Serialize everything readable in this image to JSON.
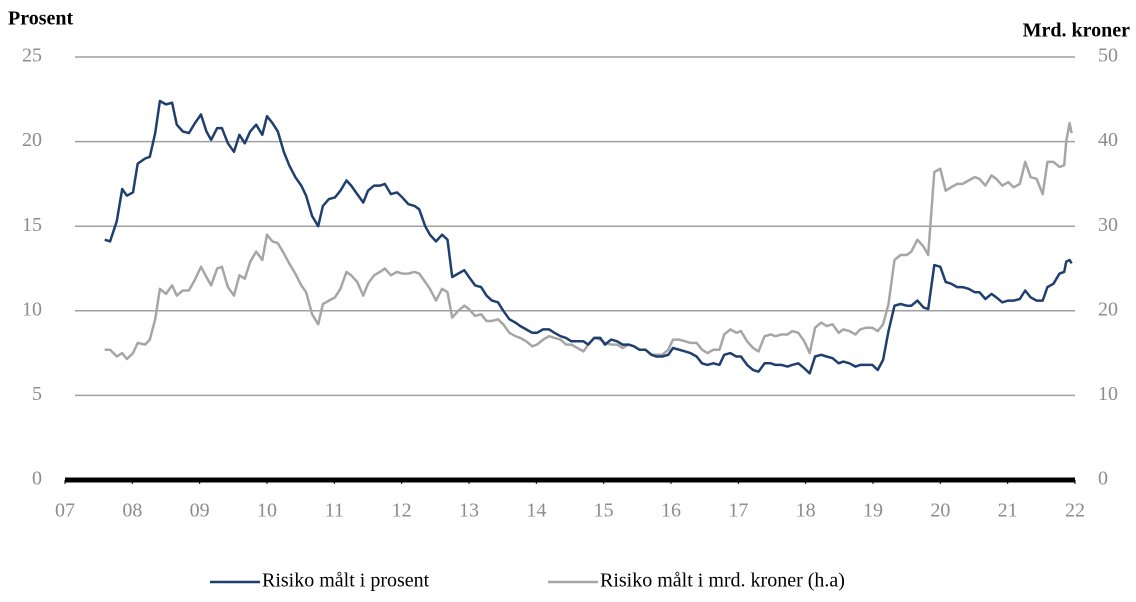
{
  "chart_data": {
    "type": "line",
    "y_label": "Prosent",
    "y2_label": "Mrd. kroner",
    "x": [
      2007.59,
      2007.67,
      2007.77,
      2007.85,
      2007.92,
      2008.01,
      2008.08,
      2008.19,
      2008.26,
      2008.34,
      2008.41,
      2008.5,
      2008.59,
      2008.66,
      2008.75,
      2008.84,
      2008.93,
      2009.02,
      2009.1,
      2009.17,
      2009.26,
      2009.33,
      2009.42,
      2009.51,
      2009.59,
      2009.67,
      2009.75,
      2009.84,
      2009.93,
      2010,
      2010.08,
      2010.16,
      2010.25,
      2010.33,
      2010.42,
      2010.51,
      2010.58,
      2010.67,
      2010.76,
      2010.83,
      2010.92,
      2011.01,
      2011.09,
      2011.18,
      2011.25,
      2011.34,
      2011.43,
      2011.5,
      2011.59,
      2011.68,
      2011.75,
      2011.84,
      2011.93,
      2012.01,
      2012.1,
      2012.19,
      2012.26,
      2012.35,
      2012.42,
      2012.51,
      2012.6,
      2012.68,
      2012.75,
      2012.84,
      2012.93,
      2013,
      2013.09,
      2013.18,
      2013.26,
      2013.34,
      2013.43,
      2013.51,
      2013.6,
      2013.69,
      2013.76,
      2013.85,
      2013.94,
      2014.01,
      2014.1,
      2014.19,
      2014.27,
      2014.36,
      2014.44,
      2014.52,
      2014.61,
      2014.7,
      2014.77,
      2014.86,
      2014.95,
      2015.02,
      2015.11,
      2015.2,
      2015.28,
      2015.37,
      2015.45,
      2015.53,
      2015.62,
      2015.71,
      2015.78,
      2015.87,
      2015.96,
      2016.03,
      2016.12,
      2016.21,
      2016.29,
      2016.38,
      2016.46,
      2016.54,
      2016.63,
      2016.72,
      2016.79,
      2016.88,
      2016.97,
      2017.04,
      2017.13,
      2017.22,
      2017.3,
      2017.39,
      2017.48,
      2017.55,
      2017.64,
      2017.73,
      2017.8,
      2017.89,
      2017.98,
      2018.06,
      2018.14,
      2018.23,
      2018.31,
      2018.4,
      2018.49,
      2018.56,
      2018.65,
      2018.74,
      2018.81,
      2018.9,
      2018.99,
      2019.07,
      2019.15,
      2019.23,
      2019.32,
      2019.41,
      2019.5,
      2019.57,
      2019.66,
      2019.75,
      2019.82,
      2019.91,
      2020,
      2020.08,
      2020.16,
      2020.25,
      2020.33,
      2020.42,
      2020.51,
      2020.58,
      2020.67,
      2020.76,
      2020.83,
      2020.92,
      2021.01,
      2021.09,
      2021.18,
      2021.26,
      2021.34,
      2021.43,
      2021.52,
      2021.59,
      2021.68,
      2021.77,
      2021.84,
      2021.87,
      2021.92,
      2021.95
    ],
    "series": [
      {
        "name": "Risiko målt i prosent",
        "color": "#1f3f6e",
        "values": [
          14.2,
          14.1,
          15.3,
          17.2,
          16.8,
          17.0,
          18.7,
          19.0,
          19.1,
          20.5,
          22.4,
          22.2,
          22.3,
          21.0,
          20.6,
          20.5,
          21.1,
          21.6,
          20.6,
          20.1,
          20.8,
          20.8,
          19.9,
          19.4,
          20.4,
          19.9,
          20.6,
          21.0,
          20.4,
          21.5,
          21.1,
          20.6,
          19.4,
          18.6,
          17.9,
          17.4,
          16.8,
          15.6,
          15.0,
          16.2,
          16.6,
          16.7,
          17.1,
          17.7,
          17.4,
          16.9,
          16.4,
          17.1,
          17.4,
          17.4,
          17.5,
          16.9,
          17.0,
          16.7,
          16.3,
          16.2,
          16.0,
          15.0,
          14.5,
          14.1,
          14.5,
          14.2,
          12.0,
          12.2,
          12.4,
          12.0,
          11.5,
          11.4,
          10.9,
          10.6,
          10.5,
          10.0,
          9.5,
          9.3,
          9.1,
          8.9,
          8.7,
          8.7,
          8.9,
          8.9,
          8.7,
          8.5,
          8.4,
          8.2,
          8.2,
          8.2,
          8.0,
          8.4,
          8.4,
          8.0,
          8.3,
          8.2,
          8.0,
          8.0,
          7.9,
          7.7,
          7.7,
          7.4,
          7.3,
          7.3,
          7.4,
          7.8,
          7.7,
          7.6,
          7.5,
          7.3,
          6.9,
          6.8,
          6.9,
          6.8,
          7.4,
          7.5,
          7.3,
          7.3,
          6.8,
          6.5,
          6.4,
          6.9,
          6.9,
          6.8,
          6.8,
          6.7,
          6.8,
          6.9,
          6.6,
          6.3,
          7.3,
          7.4,
          7.3,
          7.2,
          6.9,
          7.0,
          6.9,
          6.7,
          6.8,
          6.8,
          6.8,
          6.5,
          7.1,
          8.8,
          10.3,
          10.4,
          10.3,
          10.3,
          10.6,
          10.2,
          10.1,
          12.7,
          12.6,
          11.7,
          11.6,
          11.4,
          11.4,
          11.3,
          11.1,
          11.1,
          10.7,
          11.0,
          10.8,
          10.5,
          10.6,
          10.6,
          10.7,
          11.2,
          10.8,
          10.6,
          10.6,
          11.4,
          11.6,
          12.2,
          12.3,
          12.9,
          13.0,
          12.8
        ]
      },
      {
        "name": "Risiko målt i mrd. kroner (h.a)",
        "color": "#a6a6a6",
        "axis": "y2",
        "values": [
          15.4,
          15.4,
          14.6,
          15.0,
          14.3,
          15.0,
          16.2,
          16.0,
          16.6,
          19.0,
          22.6,
          22.0,
          23.0,
          21.8,
          22.4,
          22.4,
          23.7,
          25.2,
          24.0,
          23.0,
          25.0,
          25.2,
          22.8,
          21.8,
          24.2,
          23.8,
          25.8,
          27.0,
          26.0,
          29.0,
          28.2,
          28.0,
          26.8,
          25.6,
          24.4,
          23.0,
          22.2,
          19.6,
          18.4,
          20.8,
          21.2,
          21.6,
          22.6,
          24.6,
          24.2,
          23.4,
          21.8,
          23.2,
          24.2,
          24.6,
          25.0,
          24.2,
          24.6,
          24.4,
          24.4,
          24.6,
          24.4,
          23.4,
          22.6,
          21.2,
          22.6,
          22.2,
          19.2,
          20.0,
          20.6,
          20.2,
          19.4,
          19.6,
          18.8,
          18.8,
          19.0,
          18.4,
          17.4,
          17.0,
          16.8,
          16.4,
          15.8,
          16.0,
          16.6,
          17.0,
          16.8,
          16.6,
          16.0,
          16.0,
          15.6,
          15.2,
          16.0,
          16.8,
          16.6,
          16.2,
          16.0,
          16.0,
          15.6,
          16.0,
          15.8,
          15.4,
          15.4,
          14.8,
          14.8,
          14.8,
          15.4,
          16.6,
          16.6,
          16.4,
          16.2,
          16.2,
          15.4,
          15.0,
          15.4,
          15.4,
          17.2,
          17.8,
          17.4,
          17.6,
          16.4,
          15.6,
          15.2,
          17.0,
          17.2,
          17.0,
          17.2,
          17.2,
          17.6,
          17.4,
          16.4,
          15.0,
          18.0,
          18.6,
          18.2,
          18.4,
          17.4,
          17.8,
          17.6,
          17.2,
          17.8,
          18.0,
          18.0,
          17.6,
          18.4,
          20.8,
          26.0,
          26.6,
          26.6,
          27.0,
          28.4,
          27.6,
          26.6,
          36.4,
          36.8,
          34.2,
          34.6,
          35.0,
          35.0,
          35.4,
          35.8,
          35.6,
          34.8,
          36.0,
          35.6,
          34.8,
          35.2,
          34.6,
          35.0,
          37.6,
          35.8,
          35.6,
          33.8,
          37.6,
          37.6,
          37.0,
          37.2,
          40.0,
          42.2,
          41.0
        ]
      }
    ],
    "xlim": [
      2007,
      2022
    ],
    "xticks": [
      {
        "value": 2007,
        "label": "07"
      },
      {
        "value": 2008,
        "label": "08"
      },
      {
        "value": 2009,
        "label": "09"
      },
      {
        "value": 2010,
        "label": "10"
      },
      {
        "value": 2011,
        "label": "11"
      },
      {
        "value": 2012,
        "label": "12"
      },
      {
        "value": 2013,
        "label": "13"
      },
      {
        "value": 2014,
        "label": "14"
      },
      {
        "value": 2015,
        "label": "15"
      },
      {
        "value": 2016,
        "label": "16"
      },
      {
        "value": 2017,
        "label": "17"
      },
      {
        "value": 2018,
        "label": "18"
      },
      {
        "value": 2019,
        "label": "19"
      },
      {
        "value": 2020,
        "label": "20"
      },
      {
        "value": 2021,
        "label": "21"
      },
      {
        "value": 2022,
        "label": "22"
      }
    ],
    "ylim": [
      0,
      25
    ],
    "yticks": [
      0,
      5,
      10,
      15,
      20,
      25
    ],
    "y2lim": [
      0,
      50
    ],
    "y2ticks": [
      0,
      10,
      20,
      30,
      40,
      50
    ],
    "grid": true,
    "legend": "bottom"
  }
}
